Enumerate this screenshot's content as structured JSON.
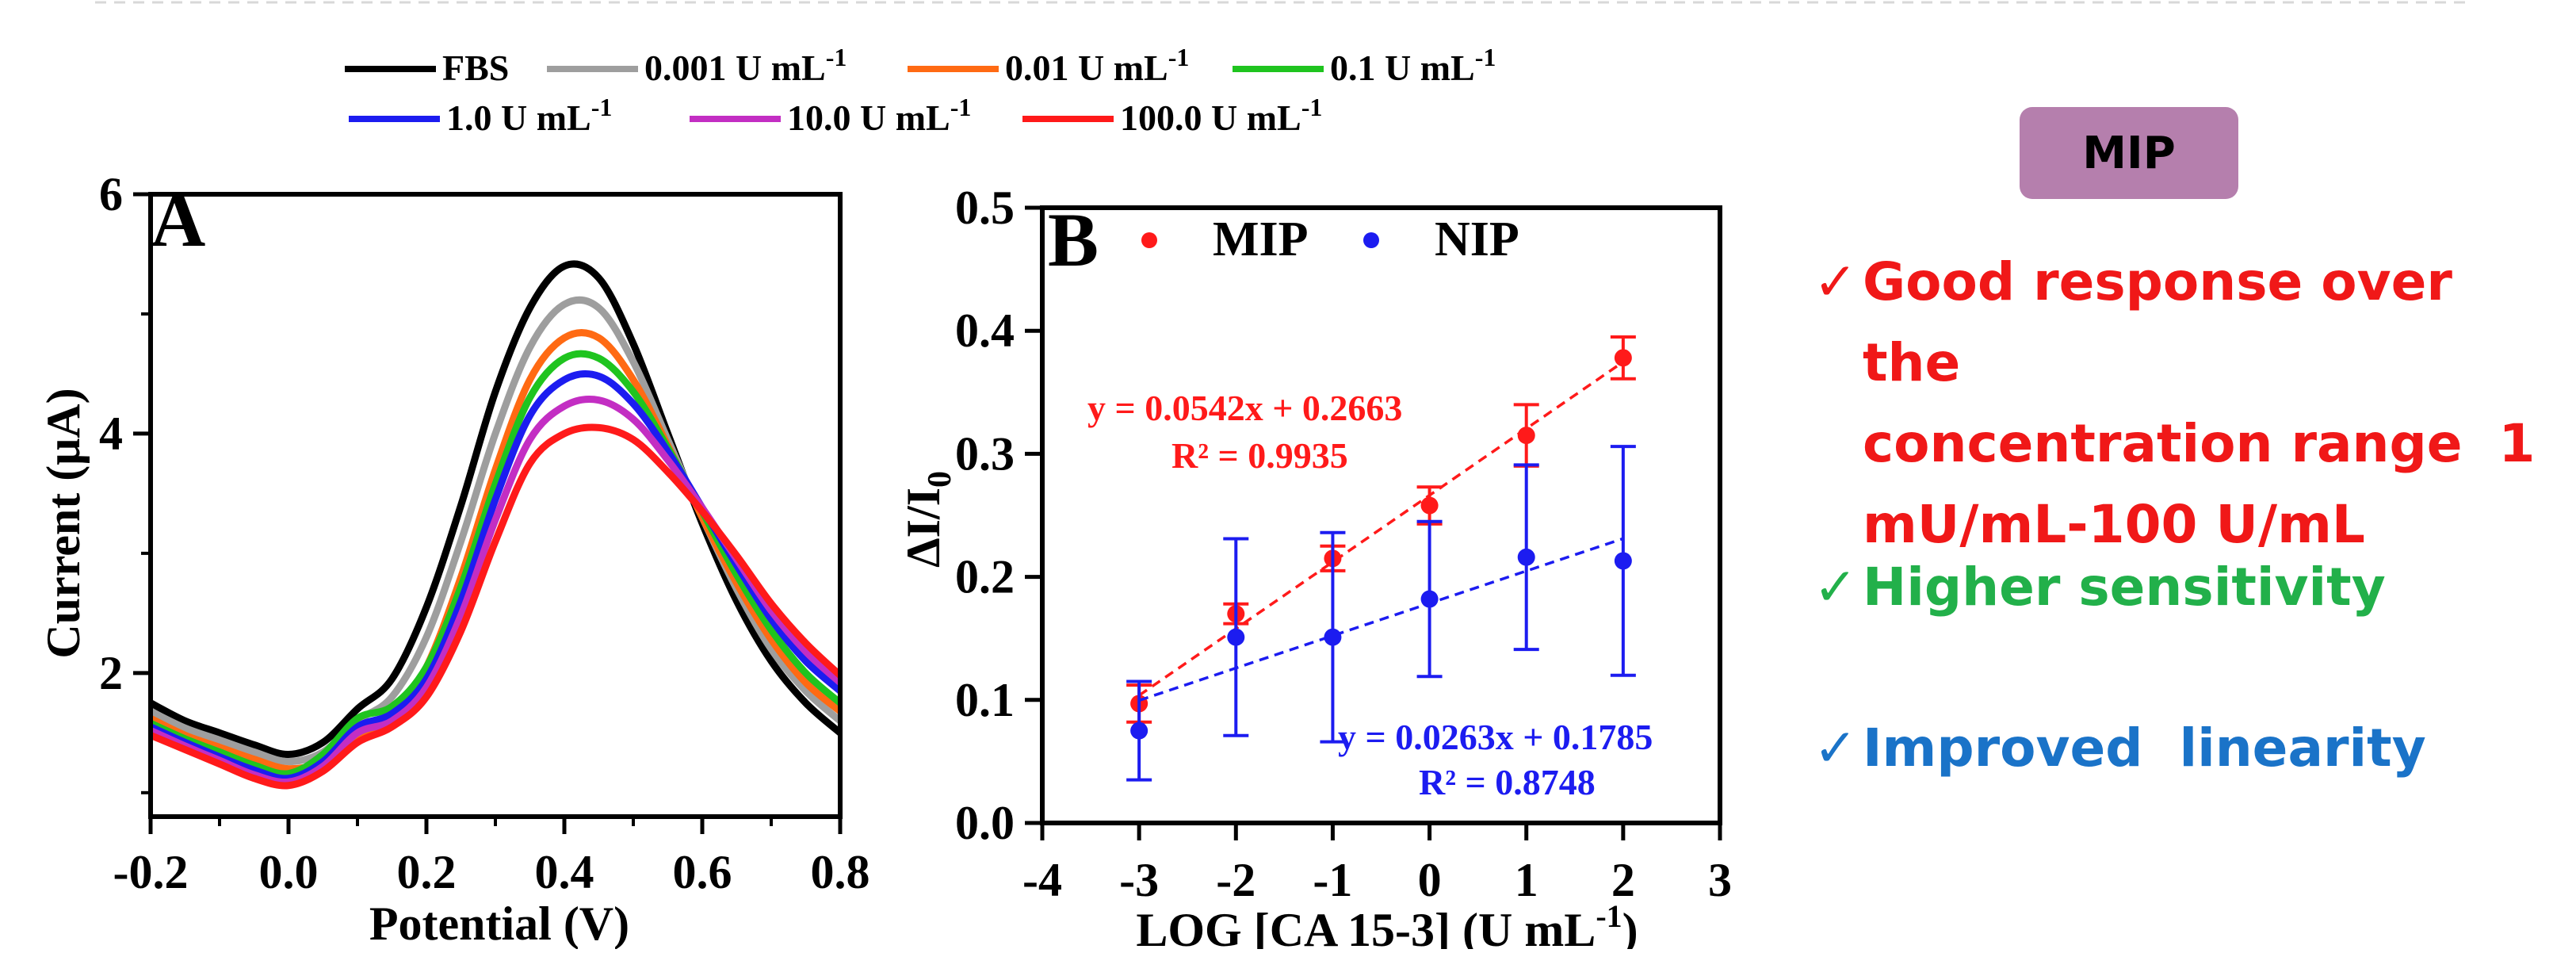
{
  "legend": {
    "entries": [
      {
        "label": "FBS",
        "sup": "",
        "color": "#000000"
      },
      {
        "label": "0.001 U mL",
        "sup": "-1",
        "color": "#9e9e9e"
      },
      {
        "label": "0.01 U mL",
        "sup": "-1",
        "color": "#ff6a13"
      },
      {
        "label": "0.1 U mL",
        "sup": "-1",
        "color": "#1fc41f"
      },
      {
        "label": "1.0 U mL",
        "sup": "-1",
        "color": "#1c1cf0"
      },
      {
        "label": "10.0 U mL",
        "sup": "-1",
        "color": "#c32ec3"
      },
      {
        "label": "100.0 U mL",
        "sup": "-1",
        "color": "#ff1a1a"
      }
    ]
  },
  "panel_a": {
    "letter": "A",
    "xlabel": "Potential (V)",
    "ylabel": "Current (μA)"
  },
  "panel_b": {
    "letter": "B",
    "xlabel": "LOG [CA 15-3] (U mL",
    "xlabel_sup": "-1",
    "xlabel_tail": ")",
    "ylabel": "ΔI/I",
    "ylabel_sub": "0",
    "legend_mip": "MIP",
    "legend_nip": "NIP",
    "eq_mip": "y = 0.0542x + 0.2663",
    "r2_mip": "R² = 0.9935",
    "eq_nip": "y = 0.0263x + 0.1785",
    "r2_nip": "R² = 0.8748"
  },
  "side": {
    "badge": "MIP",
    "features": [
      {
        "check": "✓",
        "text": "Good response over the\nconcentration range  1\nmU/mL-100 U/mL",
        "color": "#f01818"
      },
      {
        "check": "✓",
        "text": "Higher sensitivity",
        "color": "#22b04a"
      },
      {
        "check": "✓",
        "text": "Improved  linearity",
        "color": "#1a73c8"
      }
    ]
  },
  "chart_data": [
    {
      "type": "line",
      "title": "",
      "xlabel": "Potential (V)",
      "ylabel": "Current (μA)",
      "xlim": [
        -0.2,
        0.8
      ],
      "ylim": [
        0.8,
        6
      ],
      "xticks": [
        -0.2,
        0.0,
        0.2,
        0.4,
        0.6,
        0.8
      ],
      "yticks": [
        2,
        4,
        6
      ],
      "grid": false,
      "legend_position": "top",
      "x": [
        -0.2,
        -0.15,
        -0.1,
        -0.05,
        0.0,
        0.05,
        0.1,
        0.15,
        0.2,
        0.25,
        0.3,
        0.35,
        0.4,
        0.45,
        0.5,
        0.55,
        0.6,
        0.65,
        0.7,
        0.75,
        0.8
      ],
      "series": [
        {
          "name": "FBS",
          "color": "#000000",
          "values": [
            1.75,
            1.6,
            1.5,
            1.4,
            1.32,
            1.42,
            1.7,
            1.95,
            2.55,
            3.4,
            4.35,
            5.05,
            5.4,
            5.3,
            4.75,
            4.0,
            3.25,
            2.6,
            2.1,
            1.75,
            1.5
          ]
        },
        {
          "name": "0.001 U mL-1",
          "color": "#9e9e9e",
          "values": [
            1.68,
            1.54,
            1.44,
            1.34,
            1.26,
            1.34,
            1.6,
            1.8,
            2.3,
            3.1,
            4.0,
            4.72,
            5.08,
            5.05,
            4.6,
            3.95,
            3.3,
            2.7,
            2.2,
            1.85,
            1.6
          ]
        },
        {
          "name": "0.01 U mL-1",
          "color": "#ff6a13",
          "values": [
            1.62,
            1.48,
            1.38,
            1.28,
            1.2,
            1.26,
            1.46,
            1.62,
            2.05,
            2.8,
            3.7,
            4.45,
            4.8,
            4.8,
            4.45,
            3.9,
            3.3,
            2.75,
            2.28,
            1.92,
            1.68
          ]
        },
        {
          "name": "0.1 U mL-1",
          "color": "#1fc41f",
          "values": [
            1.58,
            1.45,
            1.34,
            1.23,
            1.16,
            1.32,
            1.62,
            1.72,
            2.05,
            2.72,
            3.58,
            4.3,
            4.63,
            4.63,
            4.35,
            3.88,
            3.35,
            2.82,
            2.36,
            2.0,
            1.75
          ]
        },
        {
          "name": "1.0 U mL-1",
          "color": "#1c1cf0",
          "values": [
            1.55,
            1.42,
            1.3,
            1.19,
            1.12,
            1.26,
            1.55,
            1.66,
            1.95,
            2.6,
            3.45,
            4.15,
            4.45,
            4.48,
            4.25,
            3.85,
            3.38,
            2.9,
            2.45,
            2.1,
            1.85
          ]
        },
        {
          "name": "10.0 U mL-1",
          "color": "#c32ec3",
          "values": [
            1.52,
            1.39,
            1.27,
            1.15,
            1.09,
            1.22,
            1.5,
            1.6,
            1.88,
            2.48,
            3.28,
            3.95,
            4.23,
            4.28,
            4.12,
            3.78,
            3.38,
            2.95,
            2.52,
            2.18,
            1.92
          ]
        },
        {
          "name": "100.0 U mL-1",
          "color": "#ff1a1a",
          "values": [
            1.48,
            1.36,
            1.24,
            1.12,
            1.06,
            1.18,
            1.42,
            1.55,
            1.8,
            2.35,
            3.1,
            3.75,
            4.0,
            4.05,
            3.95,
            3.68,
            3.35,
            2.98,
            2.58,
            2.25,
            1.98
          ]
        }
      ]
    },
    {
      "type": "scatter",
      "title": "",
      "xlabel": "LOG [CA 15-3] (U mL-1)",
      "ylabel": "ΔI/I0",
      "xlim": [
        -4,
        3
      ],
      "ylim": [
        0,
        0.5
      ],
      "xticks": [
        -4,
        -3,
        -2,
        -1,
        0,
        1,
        2,
        3
      ],
      "yticks": [
        0.0,
        0.1,
        0.2,
        0.3,
        0.4,
        0.5
      ],
      "grid": false,
      "legend_position": "top",
      "series": [
        {
          "name": "MIP",
          "color": "#ff1a1a",
          "x": [
            -3,
            -2,
            -1,
            0,
            1,
            2
          ],
          "y": [
            0.097,
            0.17,
            0.215,
            0.258,
            0.315,
            0.378
          ],
          "err": [
            0.015,
            0.008,
            0.01,
            0.015,
            0.025,
            0.017
          ],
          "fit": {
            "slope": 0.0542,
            "intercept": 0.2663,
            "r2": 0.9935
          }
        },
        {
          "name": "NIP",
          "color": "#1c1cf0",
          "x": [
            -3,
            -2,
            -1,
            0,
            1,
            2
          ],
          "y": [
            0.075,
            0.151,
            0.151,
            0.182,
            0.216,
            0.213
          ],
          "err": [
            0.04,
            0.08,
            0.085,
            0.063,
            0.075,
            0.093
          ],
          "fit": {
            "slope": 0.0263,
            "intercept": 0.1785,
            "r2": 0.8748
          }
        }
      ]
    }
  ]
}
